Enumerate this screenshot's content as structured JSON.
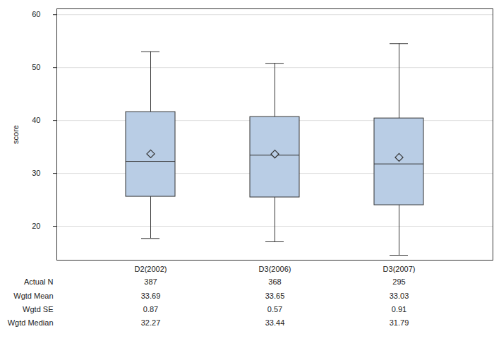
{
  "chart_data": {
    "type": "boxplot",
    "categories": [
      "D2(2002)",
      "D3(2006)",
      "D3(2007)"
    ],
    "y_label": "score",
    "ylim": [
      13.6,
      61.1
    ],
    "yticks": [
      20,
      30,
      40,
      50,
      60
    ],
    "grid": true,
    "color": "#b9cde5",
    "whisker_low": [
      17.7,
      17.07,
      14.53
    ],
    "q1": [
      25.6,
      25.47,
      24.0
    ],
    "q3": [
      41.6,
      40.67,
      40.4
    ],
    "whisker_high": [
      53.0,
      50.8,
      54.53
    ],
    "table": {
      "row_labels": [
        "Actual N",
        "Wgtd Mean",
        "Wgtd SE",
        "Wgtd Median"
      ],
      "n": [
        387,
        368,
        295
      ],
      "mean": [
        33.69,
        33.65,
        33.03
      ],
      "se": [
        0.87,
        0.57,
        0.91
      ],
      "median": [
        32.27,
        33.44,
        31.79
      ]
    }
  }
}
